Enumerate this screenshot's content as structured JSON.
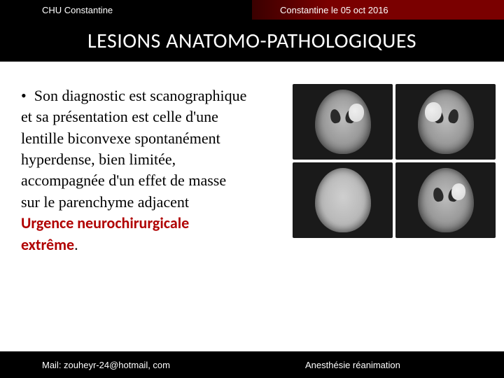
{
  "header": {
    "left": "CHU Constantine",
    "right": "Constantine le  05 oct 2016"
  },
  "title": "LESIONS ANATOMO-PATHOLOGIQUES",
  "body": {
    "line1": "Son diagnostic est scanographique",
    "line2": "et sa présentation est celle d'une",
    "line3": "lentille biconvexe spontanément",
    "line4": "hyperdense, bien limitée,",
    "line5": " accompagnée d'un effet de masse",
    "line6": "sur le parenchyme adjacent",
    "urgent1": "Urgence neurochirurgicale",
    "urgent2": "extrême",
    "period": "."
  },
  "footer": {
    "left": "Mail: zouheyr-24@hotmail, com",
    "right": "Anesthésie réanimation"
  },
  "colors": {
    "accent": "#7a0000",
    "urgent": "#b00000",
    "bg": "#ffffff",
    "bar": "#000000"
  },
  "scan_image": {
    "type": "medical-scan-grid",
    "rows": 2,
    "cols": 2,
    "description": "CT brain axial slices showing biconvex hyperdense extradural hematoma",
    "cell_bg": "#1a1a1a",
    "tissue_gray": "#9a9a9a",
    "lesion_color": "#e8e8e8"
  }
}
